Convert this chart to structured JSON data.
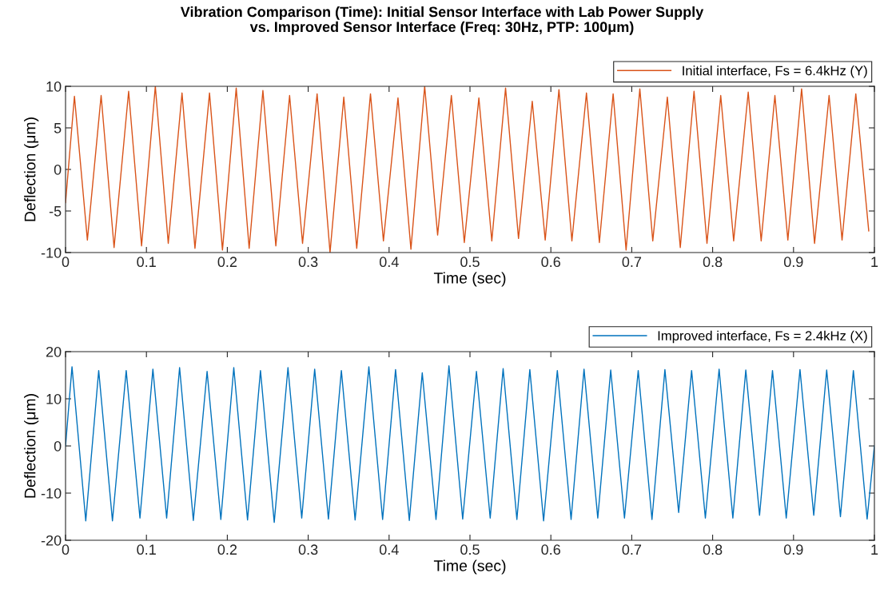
{
  "chart_data": [
    {
      "type": "line",
      "title": "Vibration Comparison (Time): Initial Sensor Interface with Lab Power Supply\nvs. Improved Sensor Interface (Freq: 30Hz, PTP: 100μm)",
      "xlabel": "Time (sec)",
      "ylabel": "Deflection (μm)",
      "xlim": [
        0,
        1
      ],
      "xticks": [
        0,
        0.1,
        0.2,
        0.3,
        0.4,
        0.5,
        0.6,
        0.7,
        0.8,
        0.9,
        1
      ],
      "ylim": [
        -10,
        10
      ],
      "yticks": [
        -10,
        -5,
        0,
        5,
        10
      ],
      "grid": false,
      "legend": "top right",
      "series": [
        {
          "name": "Initial interface, Fs = 6.4kHz (Y)",
          "color": "#d95319",
          "x": [
            0,
            0.011,
            0.027,
            0.044,
            0.06,
            0.078,
            0.094,
            0.111,
            0.127,
            0.144,
            0.16,
            0.178,
            0.194,
            0.211,
            0.227,
            0.244,
            0.26,
            0.277,
            0.293,
            0.311,
            0.327,
            0.344,
            0.36,
            0.377,
            0.393,
            0.411,
            0.427,
            0.444,
            0.46,
            0.477,
            0.493,
            0.511,
            0.527,
            0.544,
            0.56,
            0.577,
            0.593,
            0.61,
            0.626,
            0.644,
            0.66,
            0.677,
            0.693,
            0.71,
            0.726,
            0.744,
            0.76,
            0.777,
            0.793,
            0.81,
            0.826,
            0.844,
            0.86,
            0.877,
            0.893,
            0.91,
            0.926,
            0.944,
            0.96,
            0.977,
            0.993
          ],
          "values": [
            -4,
            8.8,
            -8.5,
            8.9,
            -9.4,
            9.4,
            -9.2,
            10,
            -8.9,
            9.2,
            -9.5,
            9.2,
            -9.7,
            9.8,
            -9.5,
            9.5,
            -9.2,
            8.9,
            -8.9,
            9.1,
            -10,
            8.7,
            -9.5,
            9.1,
            -8.6,
            8.6,
            -9.6,
            10,
            -7.9,
            8.9,
            -8.8,
            8.6,
            -8.6,
            9.8,
            -8.3,
            8.2,
            -8.5,
            9.6,
            -8.6,
            9.2,
            -8.8,
            9.1,
            -9.7,
            9.7,
            -8.6,
            8.7,
            -9.4,
            9.4,
            -8.9,
            8.9,
            -8.6,
            9.3,
            -8.6,
            8.9,
            -8.5,
            9.7,
            -8.9,
            8.9,
            -8.5,
            9.1,
            -7.4
          ]
        }
      ]
    },
    {
      "type": "line",
      "xlabel": "Time (sec)",
      "ylabel": "Deflection (μm)",
      "xlim": [
        0,
        1
      ],
      "xticks": [
        0,
        0.1,
        0.2,
        0.3,
        0.4,
        0.5,
        0.6,
        0.7,
        0.8,
        0.9,
        1
      ],
      "ylim": [
        -20,
        20
      ],
      "yticks": [
        -20,
        -10,
        0,
        10,
        20
      ],
      "grid": false,
      "legend": "top right",
      "series": [
        {
          "name": "Improved interface, Fs = 2.4kHz (X)",
          "color": "#0072bd",
          "x": [
            0,
            0.008,
            0.025,
            0.041,
            0.058,
            0.075,
            0.092,
            0.108,
            0.125,
            0.141,
            0.158,
            0.175,
            0.192,
            0.208,
            0.225,
            0.241,
            0.258,
            0.275,
            0.292,
            0.308,
            0.325,
            0.341,
            0.358,
            0.375,
            0.392,
            0.408,
            0.425,
            0.441,
            0.458,
            0.474,
            0.491,
            0.508,
            0.525,
            0.541,
            0.558,
            0.574,
            0.591,
            0.608,
            0.625,
            0.641,
            0.658,
            0.674,
            0.691,
            0.708,
            0.725,
            0.741,
            0.758,
            0.774,
            0.791,
            0.808,
            0.825,
            0.841,
            0.858,
            0.874,
            0.891,
            0.908,
            0.925,
            0.941,
            0.958,
            0.974,
            0.991,
            1.0
          ],
          "values": [
            0,
            16.8,
            -15.9,
            16.0,
            -15.9,
            16.0,
            -15.3,
            16.3,
            -15.3,
            16.6,
            -15.8,
            15.8,
            -15.6,
            16.6,
            -15.7,
            16.0,
            -16.2,
            16.6,
            -15.3,
            16.3,
            -15.5,
            16.0,
            -15.7,
            16.8,
            -15.6,
            16.2,
            -15.8,
            15.5,
            -15.6,
            17.0,
            -15.5,
            15.8,
            -15.3,
            16.4,
            -15.6,
            16.2,
            -15.9,
            16.0,
            -15.6,
            16.3,
            -15.3,
            16.1,
            -15.3,
            16.0,
            -15.6,
            16.2,
            -14.1,
            16.0,
            -15.3,
            16.3,
            -15.3,
            16.1,
            -14.7,
            16.0,
            -15.3,
            16.2,
            -14.7,
            16.1,
            -15.0,
            16.0,
            -15.5,
            0
          ]
        }
      ]
    }
  ]
}
